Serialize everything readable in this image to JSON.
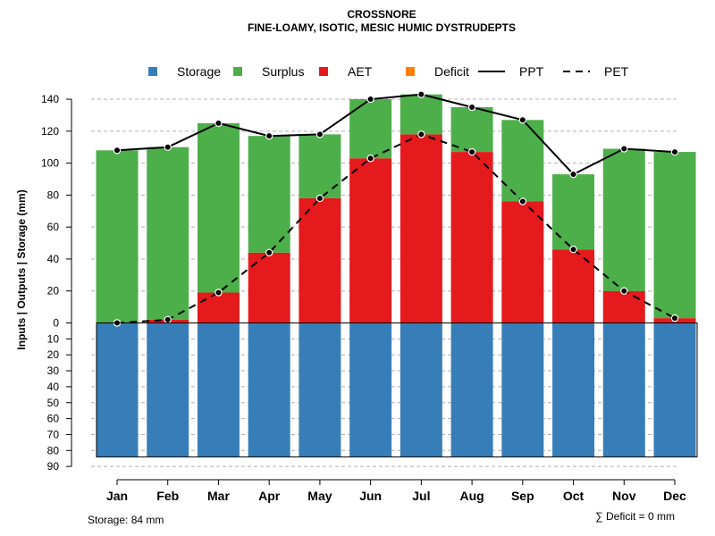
{
  "chart_data": {
    "type": "bar",
    "title": "CROSSNORE",
    "subtitle": "FINE-LOAMY, ISOTIC, MESIC HUMIC DYSTRUDEPTS",
    "ylabel": "Inputs | Outputs | Storage    (mm)",
    "categories": [
      "Jan",
      "Feb",
      "Mar",
      "Apr",
      "May",
      "Jun",
      "Jul",
      "Aug",
      "Sep",
      "Oct",
      "Nov",
      "Dec"
    ],
    "y_upper_ticks": [
      "0",
      "20",
      "40",
      "60",
      "80",
      "100",
      "120",
      "140"
    ],
    "y_lower_ticks": [
      "10",
      "20",
      "30",
      "40",
      "50",
      "60",
      "70",
      "80",
      "90"
    ],
    "ylim_upper": [
      0,
      150
    ],
    "ylim_lower": [
      0,
      90
    ],
    "legend": [
      {
        "name": "Storage",
        "kind": "square",
        "color": "#377EB8"
      },
      {
        "name": "Surplus",
        "kind": "square",
        "color": "#4DAF4A"
      },
      {
        "name": "AET",
        "kind": "square",
        "color": "#E41A1C"
      },
      {
        "name": "Deficit",
        "kind": "square",
        "color": "#FF7F00"
      },
      {
        "name": "PPT",
        "kind": "solid-line",
        "color": "#000000"
      },
      {
        "name": "PET",
        "kind": "dashed-line",
        "color": "#000000"
      }
    ],
    "series": [
      {
        "name": "Storage",
        "color": "#377EB8",
        "values": [
          84,
          84,
          84,
          84,
          84,
          84,
          84,
          84,
          84,
          84,
          84,
          84
        ]
      },
      {
        "name": "AET",
        "color": "#E41A1C",
        "values": [
          0,
          2,
          19,
          44,
          78,
          103,
          118,
          107,
          76,
          46,
          20,
          3
        ]
      },
      {
        "name": "Surplus",
        "color": "#4DAF4A",
        "values": [
          108,
          108,
          106,
          73,
          40,
          37,
          25,
          28,
          51,
          47,
          89,
          104
        ]
      },
      {
        "name": "Deficit",
        "color": "#FF7F00",
        "values": [
          0,
          0,
          0,
          0,
          0,
          0,
          0,
          0,
          0,
          0,
          0,
          0
        ]
      },
      {
        "name": "PPT",
        "color": "#000000",
        "values": [
          108,
          110,
          125,
          117,
          118,
          140,
          143,
          135,
          127,
          93,
          109,
          107
        ]
      },
      {
        "name": "PET",
        "color": "#000000",
        "values": [
          0,
          2,
          19,
          44,
          78,
          103,
          118,
          107,
          76,
          46,
          20,
          3
        ]
      }
    ],
    "grid": true,
    "legend_position": "top",
    "storage_note": "Storage: 84 mm",
    "deficit_note": "∑ Deficit = 0 mm"
  }
}
